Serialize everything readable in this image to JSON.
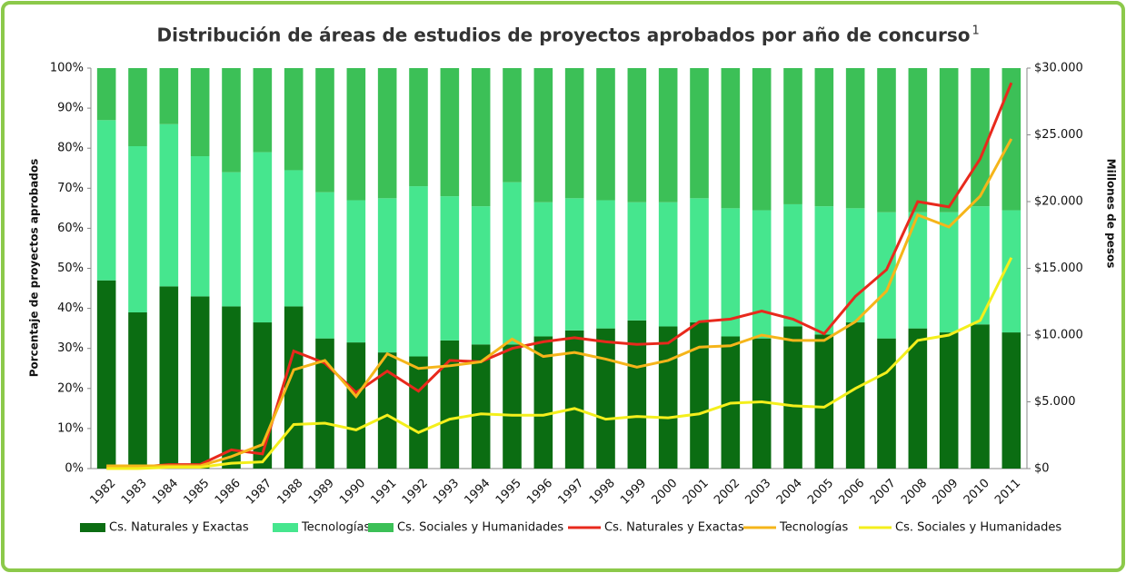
{
  "chart_data": {
    "type": "bar",
    "stacked": true,
    "title": "Distribución de áreas de estudios de proyectos aprobados por año de concurso",
    "title_sup": "1",
    "ylabel": "Porcentaje de proyectos aprobados",
    "y2label": "Millones de pesos",
    "categories": [
      "1982",
      "1983",
      "1984",
      "1985",
      "1986",
      "1987",
      "1988",
      "1989",
      "1990",
      "1991",
      "1992",
      "1993",
      "1994",
      "1995",
      "1996",
      "1997",
      "1998",
      "1999",
      "2000",
      "2001",
      "2002",
      "2003",
      "2004",
      "2005",
      "2006",
      "2007",
      "2008",
      "2009",
      "2010",
      "2011"
    ],
    "ylim": [
      0,
      100
    ],
    "yticks": [
      {
        "value": 0,
        "label": "0%"
      },
      {
        "value": 10,
        "label": "10%"
      },
      {
        "value": 20,
        "label": "20%"
      },
      {
        "value": 30,
        "label": "30%"
      },
      {
        "value": 40,
        "label": "40%"
      },
      {
        "value": 50,
        "label": "50%"
      },
      {
        "value": 60,
        "label": "60%"
      },
      {
        "value": 70,
        "label": "70%"
      },
      {
        "value": 80,
        "label": "80%"
      },
      {
        "value": 90,
        "label": "90%"
      },
      {
        "value": 100,
        "label": "100%"
      }
    ],
    "y2lim": [
      0,
      30000
    ],
    "y2ticks": [
      {
        "value": 0,
        "label": "$0"
      },
      {
        "value": 5000,
        "label": "$5.000"
      },
      {
        "value": 10000,
        "label": "$10.000"
      },
      {
        "value": 15000,
        "label": "$15.000"
      },
      {
        "value": 20000,
        "label": "$20.000"
      },
      {
        "value": 25000,
        "label": "$25.000"
      },
      {
        "value": 30000,
        "label": "$30.000"
      }
    ],
    "series": [
      {
        "name": "Cs. Naturales y Exactas",
        "type": "bar",
        "color": "#0b6d12",
        "values": [
          47,
          39,
          45.5,
          43,
          40.5,
          36.5,
          40.5,
          32.5,
          31.5,
          29,
          28,
          32,
          31,
          31,
          33,
          34.5,
          35,
          37,
          35.5,
          36.5,
          33,
          32.5,
          35.5,
          33.5,
          36.5,
          32.5,
          35,
          34,
          36,
          34
        ]
      },
      {
        "name": "Tecnologías",
        "type": "bar",
        "color": "#46e68e",
        "values": [
          40,
          41.5,
          40.5,
          35,
          33.5,
          42.5,
          34,
          36.5,
          35.5,
          38.5,
          42.5,
          36,
          34.5,
          40.5,
          33.5,
          33,
          32,
          29.5,
          31,
          31,
          32,
          32,
          30.5,
          32,
          28.5,
          31.5,
          29,
          30,
          29.5,
          30.5
        ]
      },
      {
        "name": "Cs. Sociales y Humanidades",
        "type": "bar",
        "color": "#3cc057",
        "values": [
          13,
          19.5,
          14,
          22,
          26,
          21,
          25.5,
          31,
          33,
          32.5,
          29.5,
          32,
          34.5,
          28.5,
          33.5,
          32.5,
          33,
          33.5,
          33.5,
          32.5,
          35,
          35.5,
          34,
          34.5,
          35,
          36,
          36,
          36,
          34.5,
          35.5
        ]
      },
      {
        "name": "Cs. Naturales y Exactas",
        "type": "line",
        "axis": "y2",
        "color": "#e8291c",
        "values": [
          100,
          100,
          300,
          300,
          1400,
          1100,
          8800,
          7900,
          5700,
          7300,
          5800,
          8100,
          8000,
          9000,
          9500,
          9800,
          9500,
          9300,
          9400,
          11000,
          11200,
          11800,
          11200,
          10100,
          12900,
          14900,
          20000,
          19600,
          23200,
          28900
        ]
      },
      {
        "name": "Tecnologías",
        "type": "line",
        "axis": "y2",
        "color": "#f5b51a",
        "values": [
          200,
          200,
          200,
          200,
          900,
          1800,
          7400,
          8100,
          5400,
          8600,
          7500,
          7700,
          8000,
          9700,
          8400,
          8700,
          8200,
          7600,
          8100,
          9100,
          9200,
          10000,
          9600,
          9600,
          11000,
          13300,
          19000,
          18100,
          20400,
          24700
        ]
      },
      {
        "name": "Cs. Sociales y Humanidades",
        "type": "line",
        "axis": "y2",
        "color": "#f4ef1c",
        "values": [
          0,
          0,
          100,
          100,
          400,
          500,
          3300,
          3400,
          2900,
          4000,
          2700,
          3700,
          4100,
          4000,
          4000,
          4500,
          3700,
          3900,
          3800,
          4100,
          4900,
          5000,
          4700,
          4600,
          6000,
          7200,
          9600,
          10000,
          11100,
          15800
        ]
      }
    ]
  }
}
